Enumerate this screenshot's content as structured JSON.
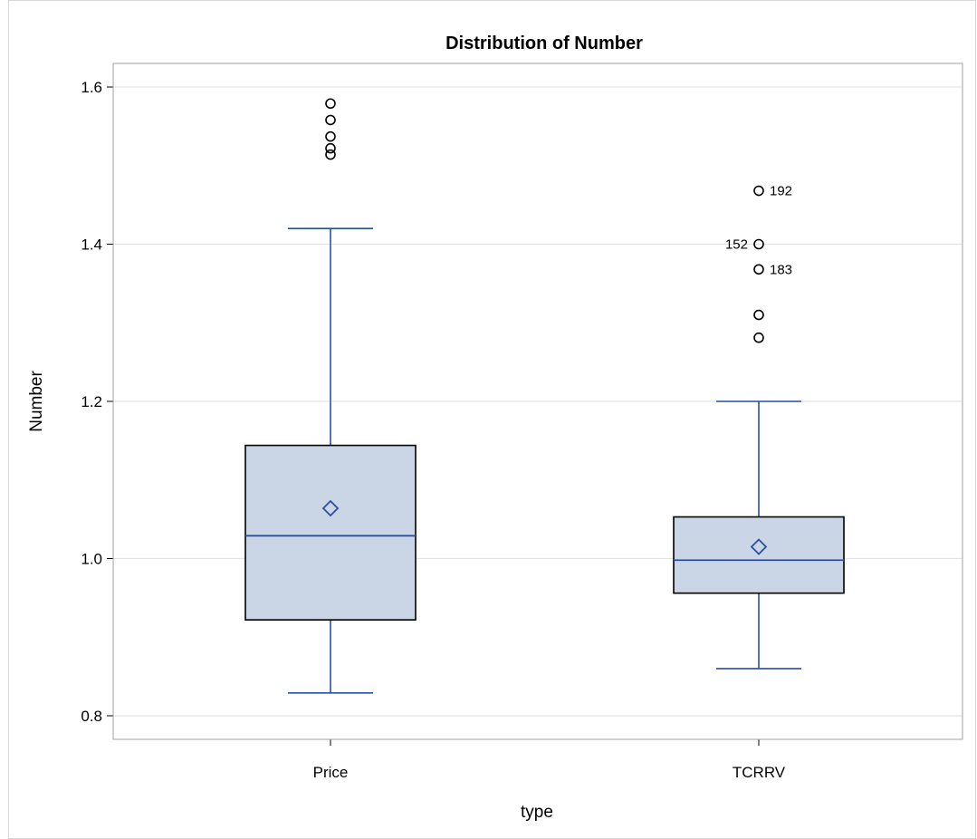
{
  "chart_data": {
    "type": "box",
    "title": "Distribution of Number",
    "xlabel": "type",
    "ylabel": "Number",
    "categories": [
      "Price",
      "TCRRV"
    ],
    "ylim": [
      0.77,
      1.63
    ],
    "yticks": [
      0.8,
      1.0,
      1.2,
      1.4,
      1.6
    ],
    "ytick_labels": [
      "0.8",
      "1.0",
      "1.2",
      "1.4",
      "1.6"
    ],
    "grid": true,
    "boxes": [
      {
        "category": "Price",
        "whisker_low": 0.829,
        "q1": 0.922,
        "median": 1.029,
        "q3": 1.144,
        "whisker_high": 1.42,
        "mean": 1.064,
        "outliers": [
          {
            "value": 1.579,
            "label": ""
          },
          {
            "value": 1.558,
            "label": ""
          },
          {
            "value": 1.537,
            "label": ""
          },
          {
            "value": 1.522,
            "label": ""
          },
          {
            "value": 1.514,
            "label": ""
          }
        ]
      },
      {
        "category": "TCRRV",
        "whisker_low": 0.86,
        "q1": 0.956,
        "median": 0.998,
        "q3": 1.053,
        "whisker_high": 1.2,
        "mean": 1.015,
        "outliers": [
          {
            "value": 1.468,
            "label": "192",
            "label_side": "right"
          },
          {
            "value": 1.4,
            "label": "152",
            "label_side": "left"
          },
          {
            "value": 1.368,
            "label": "183",
            "label_side": "right"
          },
          {
            "value": 1.31,
            "label": ""
          },
          {
            "value": 1.281,
            "label": ""
          }
        ]
      }
    ],
    "colors": {
      "box_fill": "#cad5e5",
      "box_outline": "#000000",
      "whisker": "#2a4fa3",
      "median": "#2a4fa3",
      "mean_marker": "#2a4fa3",
      "outlier": "#000000",
      "grid": "#e3e3e3",
      "frame": "#a0a0a0"
    }
  }
}
